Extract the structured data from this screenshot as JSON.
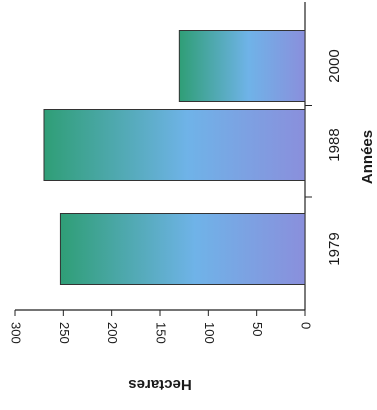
{
  "chart_data": {
    "type": "bar",
    "orientation": "rotated",
    "categories": [
      "1979",
      "1988",
      "2000"
    ],
    "values": [
      253,
      270,
      130
    ],
    "ylabel": "Hectares",
    "xlabel": "Années",
    "yticks": [
      "0",
      "50",
      "100",
      "150",
      "200",
      "250",
      "300"
    ],
    "ylim": [
      0,
      300
    ],
    "grid": false,
    "bar_gradient": [
      "#2f9e76",
      "#6fb3e8",
      "#8a8fdc"
    ]
  }
}
